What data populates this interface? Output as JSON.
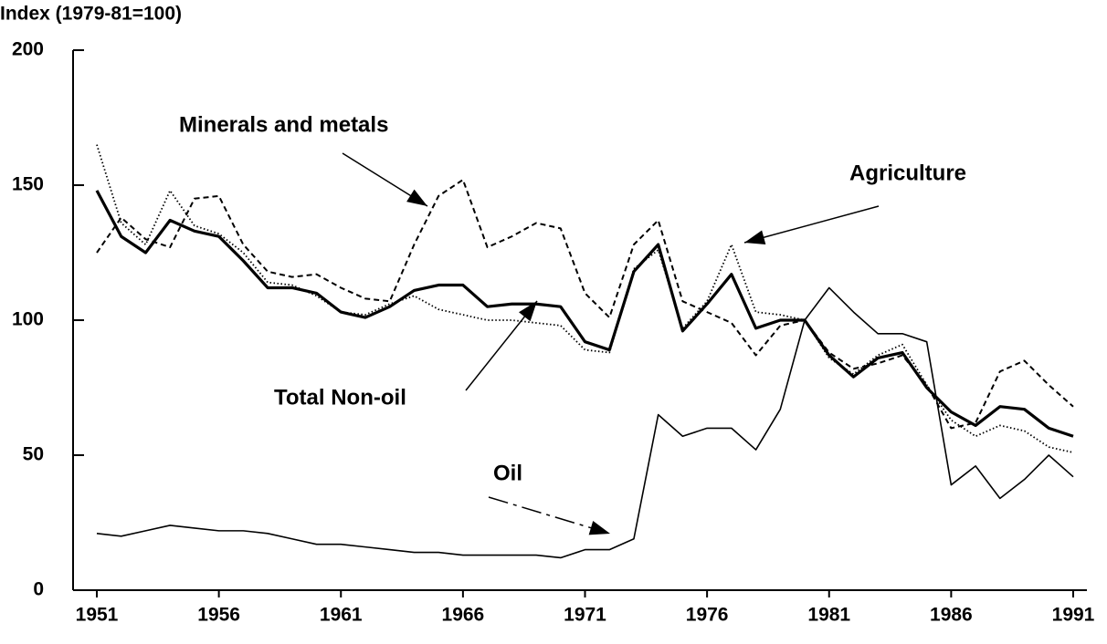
{
  "chart_data": {
    "type": "line",
    "y_label": "Index (1979-81=100)",
    "x": [
      1951,
      1952,
      1953,
      1954,
      1955,
      1956,
      1957,
      1958,
      1959,
      1960,
      1961,
      1962,
      1963,
      1964,
      1965,
      1966,
      1967,
      1968,
      1969,
      1970,
      1971,
      1972,
      1973,
      1974,
      1975,
      1976,
      1977,
      1978,
      1979,
      1980,
      1981,
      1982,
      1983,
      1984,
      1985,
      1986,
      1987,
      1988,
      1989,
      1990,
      1991
    ],
    "xlim": [
      1951,
      1991
    ],
    "xticks": [
      1951,
      1956,
      1961,
      1966,
      1971,
      1976,
      1981,
      1986,
      1991
    ],
    "ylim": [
      0,
      200
    ],
    "yticks": [
      0,
      50,
      100,
      150,
      200
    ],
    "series": [
      {
        "name": "Total Non-oil",
        "color": "#000000",
        "style": "solid-thick",
        "values": [
          148,
          131,
          125,
          137,
          133,
          131,
          122,
          112,
          112,
          110,
          103,
          101,
          105,
          111,
          113,
          113,
          105,
          106,
          106,
          105,
          92,
          89,
          118,
          128,
          96,
          106,
          117,
          97,
          100,
          100,
          87,
          79,
          86,
          88,
          75,
          66,
          61,
          68,
          67,
          60,
          57
        ]
      },
      {
        "name": "Minerals and metals",
        "color": "#000000",
        "style": "dashed",
        "values": [
          125,
          138,
          130,
          127,
          145,
          146,
          128,
          118,
          116,
          117,
          112,
          108,
          107,
          128,
          146,
          152,
          127,
          131,
          136,
          134,
          110,
          101,
          128,
          137,
          107,
          103,
          99,
          87,
          98,
          100,
          88,
          82,
          84,
          87,
          76,
          60,
          62,
          81,
          85,
          76,
          68
        ]
      },
      {
        "name": "Agriculture",
        "color": "#000000",
        "style": "dotted",
        "values": [
          165,
          136,
          128,
          148,
          135,
          132,
          125,
          114,
          113,
          109,
          103,
          102,
          106,
          109,
          104,
          102,
          100,
          100,
          99,
          98,
          89,
          88,
          119,
          126,
          97,
          107,
          128,
          103,
          102,
          100,
          86,
          80,
          87,
          91,
          76,
          63,
          57,
          61,
          59,
          53,
          51
        ]
      },
      {
        "name": "Oil",
        "color": "#000000",
        "style": "solid-thin",
        "values": [
          21,
          20,
          22,
          24,
          23,
          22,
          22,
          21,
          19,
          17,
          17,
          16,
          15,
          14,
          14,
          13,
          13,
          13,
          13,
          12,
          15,
          15,
          19,
          65,
          57,
          60,
          60,
          52,
          67,
          100,
          112,
          103,
          95,
          95,
          92,
          39,
          46,
          34,
          41,
          50,
          42
        ]
      }
    ]
  }
}
